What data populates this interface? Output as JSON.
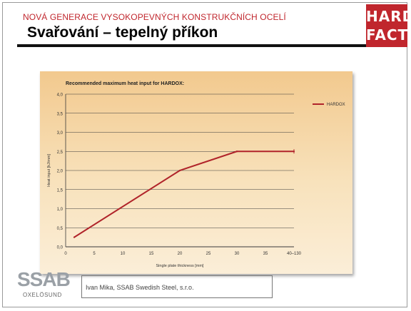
{
  "header": {
    "kicker": "NOVÁ GENERACE VYSOKOPEVNÝCH KONSTRUKČNÍCH OCELÍ",
    "title": "Svařování – tepelný příkon"
  },
  "logo": {
    "line1": "HARD",
    "line2": "FACTS"
  },
  "footer": {
    "company_logo": "SSAB",
    "company_sub": "OXELÖSUND",
    "presenter": "Ivan Mika,    SSAB Swedish Steel, s.r.o."
  },
  "colors": {
    "brand_red": "#c0262d",
    "series_line": "#b0232a",
    "chart_bg_top": "#f2c98e",
    "chart_bg_bottom": "#fbeed8"
  },
  "chart_data": {
    "type": "line",
    "title": "Recommended maximum heat input for HARDOX:",
    "xlabel": "Single plate thickness  [mm]",
    "ylabel": "Heat input [kJ/mm]",
    "x_ticks": [
      "0",
      "5",
      "10",
      "15",
      "20",
      "25",
      "30",
      "35",
      "40–130"
    ],
    "y_ticks": [
      "0,0",
      "0,5",
      "1,0",
      "1,5",
      "2,0",
      "2,5",
      "3,0",
      "3,5",
      "4,0"
    ],
    "xlim": [
      0,
      40
    ],
    "ylim": [
      0,
      4
    ],
    "grid": "horizontal",
    "legend_position": "right",
    "series": [
      {
        "name": "HARDOX",
        "x": [
          1.5,
          20,
          30,
          40
        ],
        "y": [
          0.25,
          2.0,
          2.5,
          2.5
        ]
      }
    ]
  }
}
